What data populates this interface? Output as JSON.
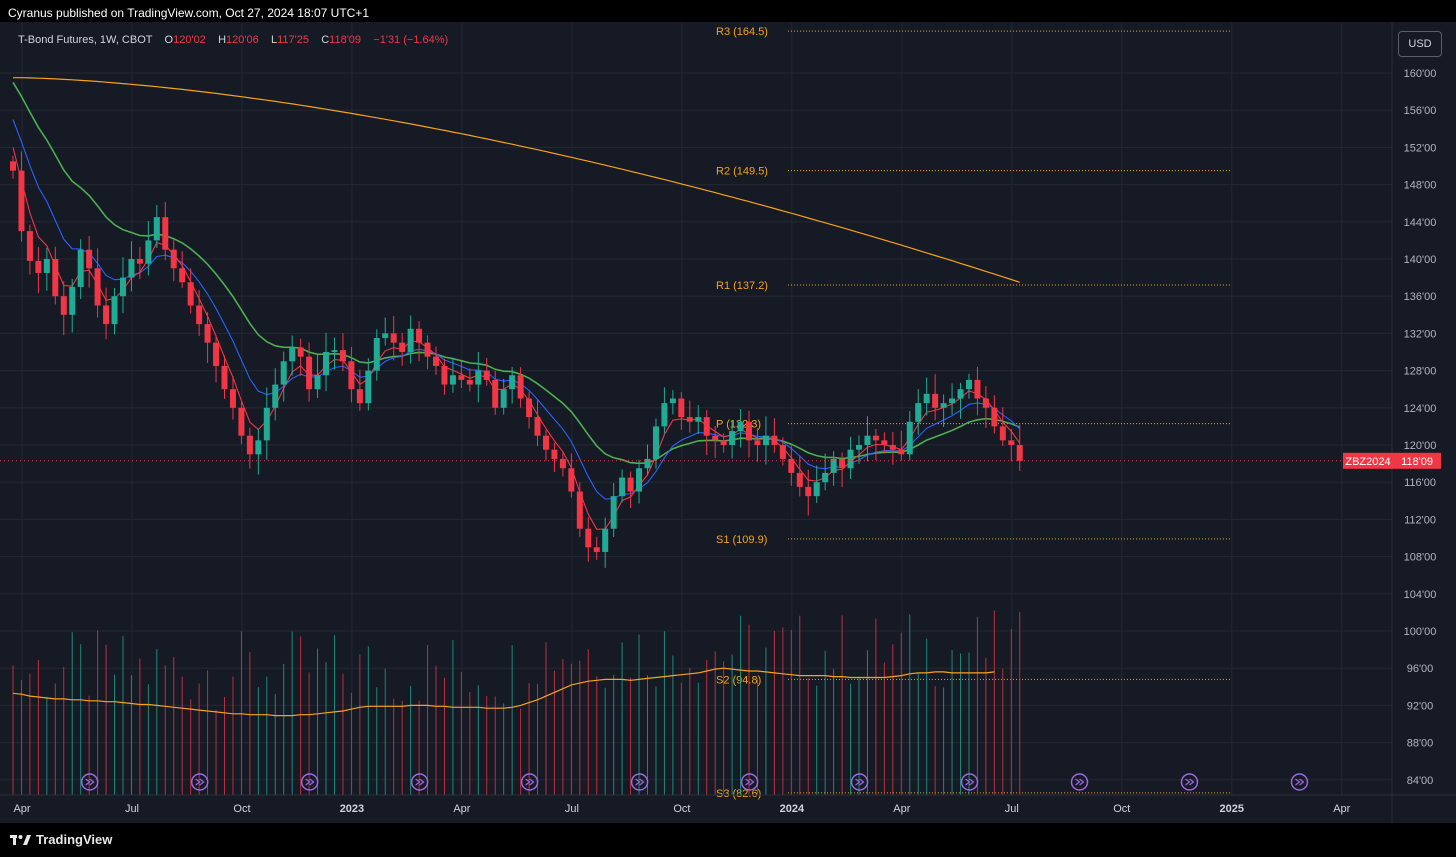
{
  "header": {
    "published": "Cyranus published on TradingView.com, Oct 27, 2024 18:07 UTC+1"
  },
  "legend": {
    "symbol": "T-Bond Futures, 1W, CBOT",
    "o_label": "O",
    "o_value": "120'02",
    "h_label": "H",
    "h_value": "120'06",
    "l_label": "L",
    "l_value": "117'25",
    "c_label": "C",
    "c_value": "118'09",
    "change": "−1'31 (−1.64%)"
  },
  "currency_button": "USD",
  "footer": {
    "brand": "TradingView"
  },
  "colors": {
    "background": "#161a25",
    "grid": "#242833",
    "bull": "#22ab94",
    "bear": "#f23645",
    "pivot": "#f7a21b",
    "sma200": "#f7a21b",
    "ema_green": "#4caf50",
    "ema_blue": "#2962ff",
    "ema_red": "#f23645",
    "event_icon": "#9c6ade"
  },
  "chart_data": {
    "type": "candlestick",
    "symbol": "ZBZ2024",
    "last_price": "118'09",
    "y_ticks": [
      "160'00",
      "156'00",
      "152'00",
      "148'00",
      "144'00",
      "140'00",
      "136'00",
      "132'00",
      "128'00",
      "124'00",
      "120'00",
      "116'00",
      "112'00",
      "108'00",
      "104'00",
      "100'00",
      "96'00",
      "92'00",
      "88'00",
      "84'00"
    ],
    "y_tick_values": [
      160,
      156,
      152,
      148,
      144,
      140,
      136,
      132,
      128,
      124,
      120,
      116,
      112,
      108,
      104,
      100,
      96,
      92,
      88,
      84
    ],
    "ylim": [
      82,
      163
    ],
    "x_ticks": [
      "Apr",
      "Jul",
      "Oct",
      "2023",
      "Apr",
      "Jul",
      "Oct",
      "2024",
      "Apr",
      "Jul",
      "Oct",
      "2025",
      "Apr"
    ],
    "x_tick_week": [
      0,
      13,
      26,
      39,
      52,
      65,
      78,
      91,
      104,
      117,
      130,
      143,
      156
    ],
    "pivots": [
      {
        "label": "R3 (164.5)",
        "value": 164.5
      },
      {
        "label": "R2 (149.5)",
        "value": 149.5
      },
      {
        "label": "R1 (137.2)",
        "value": 137.2
      },
      {
        "label": "P (122.3)",
        "value": 122.3
      },
      {
        "label": "S1 (109.9)",
        "value": 109.9
      },
      {
        "label": "S2 (94.8)",
        "value": 94.8
      },
      {
        "label": "S3 (82.6)",
        "value": 82.6
      }
    ],
    "closes": [
      149.5,
      143.0,
      139.8,
      138.5,
      140.0,
      136.0,
      134.0,
      137.0,
      141.0,
      139.0,
      135.0,
      133.0,
      136.0,
      138.0,
      140.0,
      139.5,
      142.0,
      144.5,
      141.0,
      139.0,
      137.5,
      135.0,
      133.0,
      131.0,
      128.5,
      126.0,
      124.0,
      121.0,
      119.0,
      120.5,
      124.0,
      126.5,
      129.0,
      130.5,
      129.5,
      126.0,
      127.5,
      130.0,
      130.2,
      129.0,
      126.0,
      124.5,
      128.0,
      131.5,
      132.0,
      131.0,
      130.0,
      132.5,
      131.0,
      129.5,
      128.5,
      126.5,
      127.5,
      127.0,
      126.5,
      128.0,
      127.0,
      124.0,
      126.0,
      127.5,
      125.0,
      123.0,
      121.0,
      119.5,
      118.5,
      117.5,
      115.0,
      111.0,
      109.0,
      108.5,
      111.0,
      114.5,
      116.5,
      115.0,
      117.5,
      118.5,
      122.0,
      124.5,
      125.0,
      123.0,
      122.5,
      123.0,
      121.0,
      120.5,
      120.0,
      121.5,
      122.5,
      120.5,
      120.0,
      121.0,
      120.0,
      118.5,
      117.0,
      115.5,
      114.5,
      116.0,
      117.0,
      118.5,
      117.5,
      119.5,
      120.0,
      121.0,
      120.5,
      120.0,
      119.5,
      119.0,
      122.5,
      124.5,
      125.5,
      124.0,
      124.5,
      125.0,
      126.0,
      127.0,
      125.0,
      124.0,
      122.0,
      120.5,
      120.0,
      118.3
    ],
    "volume_ma": [
      93.3,
      93.2,
      93.0,
      92.9,
      92.8,
      92.7,
      92.7,
      92.6,
      92.6,
      92.5,
      92.5,
      92.4,
      92.4,
      92.3,
      92.2,
      92.1,
      92.1,
      92.0,
      91.9,
      91.8,
      91.7,
      91.6,
      91.5,
      91.4,
      91.3,
      91.2,
      91.1,
      91.1,
      91.0,
      91.0,
      91.0,
      90.9,
      90.9,
      90.9,
      91.0,
      91.0,
      91.1,
      91.2,
      91.3,
      91.4,
      91.6,
      91.8,
      91.9,
      91.9,
      91.9,
      91.9,
      91.9,
      92.0,
      92.0,
      92.0,
      91.9,
      91.9,
      91.8,
      91.8,
      91.8,
      91.8,
      91.7,
      91.7,
      91.7,
      91.8,
      92.0,
      92.3,
      92.6,
      93.0,
      93.4,
      93.8,
      94.2,
      94.4,
      94.6,
      94.7,
      94.8,
      94.8,
      94.8,
      94.7,
      94.8,
      94.9,
      95.0,
      95.1,
      95.2,
      95.3,
      95.4,
      95.5,
      95.7,
      95.9,
      96.0,
      95.9,
      95.8,
      95.7,
      95.7,
      95.6,
      95.5,
      95.4,
      95.3,
      95.2,
      95.2,
      95.2,
      95.2,
      95.1,
      95.1,
      95.0,
      95.0,
      95.0,
      95.0,
      95.0,
      95.1,
      95.2,
      95.4,
      95.5,
      95.5,
      95.6,
      95.6,
      95.5,
      95.5,
      95.5,
      95.5,
      95.5,
      95.6
    ]
  }
}
